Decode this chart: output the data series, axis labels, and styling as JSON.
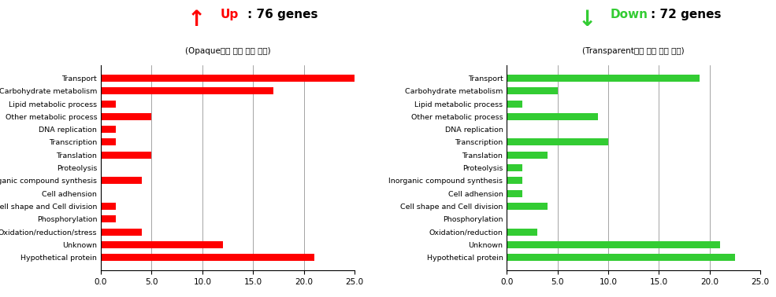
{
  "categories_up": [
    "Transport",
    "Carbohydrate metabolism",
    "Lipid metabolic process",
    "Other metabolic process",
    "DNA replication",
    "Transcription",
    "Translation",
    "Proteolysis",
    "Inorganic compound synthesis",
    "Cell adhension",
    "Cell shape and Cell division",
    "Phosphorylation",
    "Oxidation/reduction/stress",
    "Unknown",
    "Hypothetical protein"
  ],
  "categories_down": [
    "Transport",
    "Carbohydrate metabolism",
    "Lipid metabolic process",
    "Other metabolic process",
    "DNA replication",
    "Transcription",
    "Translation",
    "Proteolysis",
    "Inorganic compound synthesis",
    "Cell adhension",
    "Cell shape and Cell division",
    "Phosphorylation",
    "Oxidation/reduction",
    "Unknown",
    "Hypothetical protein"
  ],
  "up_values": [
    25.0,
    17.0,
    1.5,
    5.0,
    1.5,
    1.5,
    5.0,
    0.0,
    4.0,
    0.0,
    1.5,
    1.5,
    4.0,
    12.0,
    21.0
  ],
  "down_values": [
    19.0,
    5.0,
    1.5,
    9.0,
    0.0,
    10.0,
    4.0,
    1.5,
    1.5,
    1.5,
    4.0,
    0.0,
    3.0,
    21.0,
    22.5
  ],
  "up_color": "#FF0000",
  "down_color": "#33CC33",
  "up_title_part1": "Up ",
  "up_title_part2": ": 76 genes",
  "up_subtitle": "(Opaque에서 발현 증가 예측)",
  "down_title_part1": "Down",
  "down_title_part2": ": 72 genes",
  "down_subtitle": "(Transparent에서 발현 증가 예측)",
  "xlim": [
    0,
    25.0
  ],
  "xticks": [
    0.0,
    5.0,
    10.0,
    15.0,
    20.0,
    25.0
  ],
  "xtick_labels": [
    "0.0",
    "5.0",
    "10.0",
    "15.0",
    "20.0",
    "25.0"
  ],
  "bg_color": "#FFFFFF",
  "bar_height": 0.55
}
